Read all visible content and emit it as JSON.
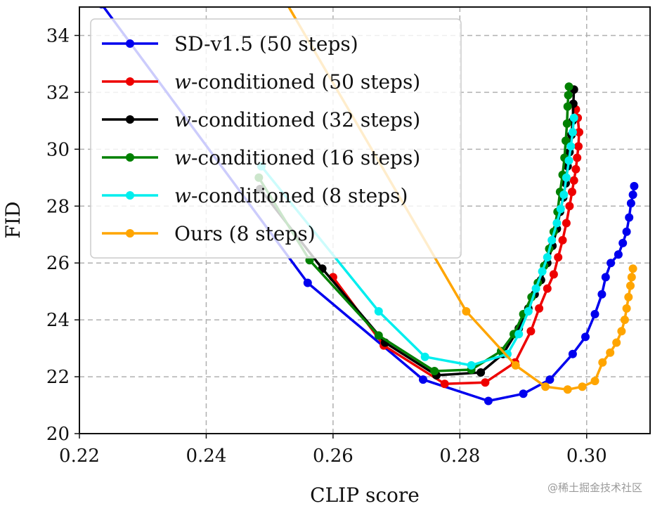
{
  "chart_data": {
    "type": "line",
    "title": "",
    "xlabel": "CLIP score",
    "ylabel": "FID",
    "xlim": [
      0.22,
      0.31
    ],
    "ylim": [
      20,
      35
    ],
    "xticks": [
      0.22,
      0.24,
      0.26,
      0.28,
      0.3
    ],
    "xtick_labels": [
      "0.22",
      "0.24",
      "0.26",
      "0.28",
      "0.30"
    ],
    "yticks": [
      20,
      22,
      24,
      26,
      28,
      30,
      32,
      34
    ],
    "ytick_labels": [
      "20",
      "22",
      "24",
      "26",
      "28",
      "30",
      "32",
      "34"
    ],
    "grid": true,
    "legend_position": "top-left",
    "series": [
      {
        "name": "SD-v1.5 (50 steps)",
        "legend_prefix": "",
        "legend_suffix": "SD-v1.5 (50 steps)",
        "color": "#0000ee",
        "points": [
          [
            0.2235,
            35.1
          ],
          [
            0.256,
            25.3
          ],
          [
            0.2742,
            21.9
          ],
          [
            0.2845,
            21.15
          ],
          [
            0.29,
            21.4
          ],
          [
            0.2942,
            21.9
          ],
          [
            0.2978,
            22.8
          ],
          [
            0.2998,
            23.4
          ],
          [
            0.3013,
            24.2
          ],
          [
            0.3024,
            24.9
          ],
          [
            0.303,
            25.5
          ],
          [
            0.3038,
            26.0
          ],
          [
            0.305,
            26.3
          ],
          [
            0.3057,
            26.7
          ],
          [
            0.3063,
            27.1
          ],
          [
            0.3067,
            27.6
          ],
          [
            0.307,
            28.1
          ],
          [
            0.3073,
            28.4
          ],
          [
            0.3075,
            28.7
          ]
        ]
      },
      {
        "name": "w-conditioned (50 steps)",
        "legend_prefix": "w",
        "legend_suffix": "-conditioned (50 steps)",
        "color": "#ee0000",
        "points": [
          [
            0.26,
            25.5
          ],
          [
            0.268,
            23.1
          ],
          [
            0.2776,
            21.75
          ],
          [
            0.284,
            21.8
          ],
          [
            0.2887,
            22.5
          ],
          [
            0.2912,
            23.6
          ],
          [
            0.2925,
            24.4
          ],
          [
            0.2938,
            25.1
          ],
          [
            0.2948,
            25.6
          ],
          [
            0.2955,
            26.2
          ],
          [
            0.2962,
            26.8
          ],
          [
            0.2968,
            27.4
          ],
          [
            0.2973,
            28.0
          ],
          [
            0.2977,
            28.5
          ],
          [
            0.298,
            28.9
          ],
          [
            0.2983,
            29.3
          ],
          [
            0.2985,
            29.7
          ],
          [
            0.2987,
            30.1
          ],
          [
            0.2988,
            30.6
          ],
          [
            0.2986,
            31.1
          ],
          [
            0.2983,
            31.4
          ]
        ]
      },
      {
        "name": "w-conditioned (32 steps)",
        "legend_prefix": "w",
        "legend_suffix": "-conditioned (32 steps)",
        "color": "#000000",
        "points": [
          [
            0.2485,
            28.6
          ],
          [
            0.2583,
            25.8
          ],
          [
            0.2682,
            23.2
          ],
          [
            0.2763,
            22.05
          ],
          [
            0.2833,
            22.15
          ],
          [
            0.2868,
            22.8
          ],
          [
            0.2893,
            23.7
          ],
          [
            0.2908,
            24.4
          ],
          [
            0.2918,
            24.9
          ],
          [
            0.2928,
            25.4
          ],
          [
            0.2938,
            26.0
          ],
          [
            0.2946,
            26.6
          ],
          [
            0.2953,
            27.2
          ],
          [
            0.2958,
            27.8
          ],
          [
            0.2963,
            28.3
          ],
          [
            0.2967,
            28.8
          ],
          [
            0.297,
            29.4
          ],
          [
            0.2973,
            29.9
          ],
          [
            0.2976,
            30.5
          ],
          [
            0.2978,
            31.0
          ],
          [
            0.2979,
            31.6
          ],
          [
            0.298,
            32.1
          ]
        ]
      },
      {
        "name": "w-conditioned (16 steps)",
        "legend_prefix": "w",
        "legend_suffix": "-conditioned (16 steps)",
        "color": "#008000",
        "points": [
          [
            0.2483,
            29.0
          ],
          [
            0.2563,
            26.1
          ],
          [
            0.2672,
            23.45
          ],
          [
            0.276,
            22.2
          ],
          [
            0.2818,
            22.25
          ],
          [
            0.2865,
            22.9
          ],
          [
            0.2885,
            23.5
          ],
          [
            0.29,
            24.2
          ],
          [
            0.2913,
            24.8
          ],
          [
            0.2923,
            25.3
          ],
          [
            0.2933,
            25.9
          ],
          [
            0.2941,
            26.5
          ],
          [
            0.2948,
            27.1
          ],
          [
            0.2954,
            27.8
          ],
          [
            0.2958,
            28.5
          ],
          [
            0.2962,
            29.1
          ],
          [
            0.2965,
            29.7
          ],
          [
            0.2967,
            30.3
          ],
          [
            0.2969,
            30.9
          ],
          [
            0.297,
            31.5
          ],
          [
            0.2971,
            31.9
          ],
          [
            0.2972,
            32.2
          ]
        ]
      },
      {
        "name": "w-conditioned (8 steps)",
        "legend_prefix": "w",
        "legend_suffix": "-conditioned (8 steps)",
        "color": "#00eeee",
        "points": [
          [
            0.2487,
            29.4
          ],
          [
            0.2672,
            24.3
          ],
          [
            0.2745,
            22.7
          ],
          [
            0.2818,
            22.4
          ],
          [
            0.2875,
            22.8
          ],
          [
            0.2893,
            23.5
          ],
          [
            0.2908,
            24.3
          ],
          [
            0.292,
            25.1
          ],
          [
            0.293,
            25.7
          ],
          [
            0.2938,
            26.2
          ],
          [
            0.2945,
            26.8
          ],
          [
            0.2953,
            27.4
          ],
          [
            0.2959,
            27.9
          ],
          [
            0.2964,
            28.4
          ],
          [
            0.2968,
            29.0
          ],
          [
            0.2972,
            29.6
          ],
          [
            0.2975,
            30.1
          ],
          [
            0.2978,
            30.6
          ],
          [
            0.298,
            31.1
          ]
        ]
      },
      {
        "name": "Ours (8 steps)",
        "legend_prefix": "",
        "legend_suffix": "Ours (8 steps)",
        "color": "#ffa500",
        "points": [
          [
            0.2525,
            35.2
          ],
          [
            0.281,
            24.3
          ],
          [
            0.2888,
            22.4
          ],
          [
            0.2935,
            21.65
          ],
          [
            0.297,
            21.55
          ],
          [
            0.2993,
            21.65
          ],
          [
            0.3013,
            21.85
          ],
          [
            0.3025,
            22.5
          ],
          [
            0.3037,
            22.85
          ],
          [
            0.3047,
            23.2
          ],
          [
            0.3055,
            23.6
          ],
          [
            0.306,
            24.0
          ],
          [
            0.3063,
            24.4
          ],
          [
            0.3066,
            24.8
          ],
          [
            0.3069,
            25.2
          ],
          [
            0.3071,
            25.5
          ],
          [
            0.3073,
            25.8
          ]
        ]
      }
    ]
  },
  "watermark": "@稀土掘金技术社区"
}
